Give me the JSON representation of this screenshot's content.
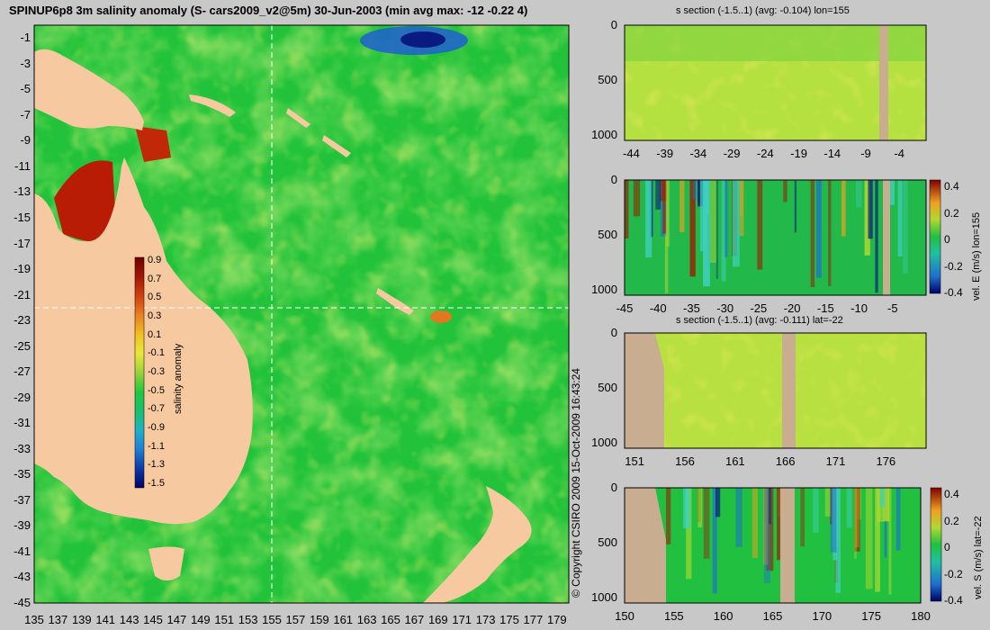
{
  "colors": {
    "background": "#c8c8c8",
    "land": "#f7c9a0",
    "section_land": "#c8ad90",
    "grid": "#ffffff"
  },
  "chart_data": [
    {
      "type": "heatmap",
      "title": "SPINUP6p8 3m salinity anomaly (S- cars2009_v2@5m) 30-Jun-2003 (min avg max: -12 -0.22 4)",
      "x_ticks": [
        "135",
        "137",
        "139",
        "141",
        "143",
        "145",
        "147",
        "149",
        "151",
        "153",
        "155",
        "157",
        "159",
        "161",
        "163",
        "165",
        "167",
        "169",
        "171",
        "173",
        "175",
        "177",
        "179"
      ],
      "y_ticks": [
        "-1",
        "-3",
        "-5",
        "-7",
        "-9",
        "-11",
        "-13",
        "-15",
        "-17",
        "-19",
        "-21",
        "-23",
        "-25",
        "-27",
        "-29",
        "-31",
        "-33",
        "-35",
        "-37",
        "-39",
        "-41",
        "-43",
        "-45"
      ],
      "xlim": [
        135,
        180
      ],
      "ylim": [
        -45,
        0
      ],
      "section_lines": {
        "lon": 155,
        "lat": -22
      },
      "colorbar": {
        "label": "salinity anomaly",
        "ticks": [
          "0.9",
          "0.7",
          "0.5",
          "0.3",
          "0.1",
          "-0.1",
          "-0.3",
          "-0.5",
          "-0.7",
          "-0.9",
          "-1.1",
          "-1.3",
          "-1.5"
        ],
        "range": [
          -1.5,
          0.9
        ],
        "colors": [
          "#000066",
          "#0b3aa8",
          "#1e7fd6",
          "#21b0c8",
          "#18c06c",
          "#20c840",
          "#9ad23a",
          "#e8e83a",
          "#f0c020",
          "#e88020",
          "#d04010",
          "#a01804",
          "#700000"
        ]
      },
      "copyright": "© Copyright CSIRO 2009  15-Oct-2009 16:43:24"
    },
    {
      "type": "heatmap",
      "title": "s section (-1.5..1) (avg: -0.104) lon=155",
      "x_ticks": [
        "-44",
        "-39",
        "-34",
        "-29",
        "-24",
        "-19",
        "-14",
        "-9",
        "-4"
      ],
      "y_ticks": [
        "0",
        "500",
        "1000"
      ],
      "xlim": [
        -45,
        0
      ],
      "ylim": [
        1050,
        0
      ]
    },
    {
      "type": "heatmap",
      "x_ticks": [
        "-45",
        "-40",
        "-35",
        "-30",
        "-25",
        "-20",
        "-15",
        "-10",
        "-5"
      ],
      "y_ticks": [
        "0",
        "500",
        "1000"
      ],
      "xlim": [
        -45,
        0
      ],
      "ylim": [
        1050,
        0
      ],
      "colorbar": {
        "label": "vel. E (m/s) lon=155",
        "ticks": [
          "0.4",
          "0.2",
          "0",
          "-0.2",
          "-0.4"
        ],
        "range": [
          -0.4,
          0.4
        ]
      }
    },
    {
      "type": "heatmap",
      "title": "s section (-1.5..1) (avg: -0.111) lat=-22",
      "x_ticks": [
        "151",
        "156",
        "161",
        "166",
        "171",
        "176"
      ],
      "y_ticks": [
        "0",
        "500",
        "1000"
      ],
      "xlim": [
        150,
        180
      ],
      "ylim": [
        1050,
        0
      ]
    },
    {
      "type": "heatmap",
      "x_ticks": [
        "150",
        "155",
        "160",
        "165",
        "170",
        "175",
        "180"
      ],
      "y_ticks": [
        "0",
        "500",
        "1000"
      ],
      "xlim": [
        150,
        180
      ],
      "ylim": [
        1050,
        0
      ],
      "colorbar": {
        "label": "vel. S (m/s) lat=-22",
        "ticks": [
          "0.4",
          "0.2",
          "0",
          "-0.2",
          "-0.4"
        ],
        "range": [
          -0.4,
          0.4
        ]
      }
    }
  ]
}
